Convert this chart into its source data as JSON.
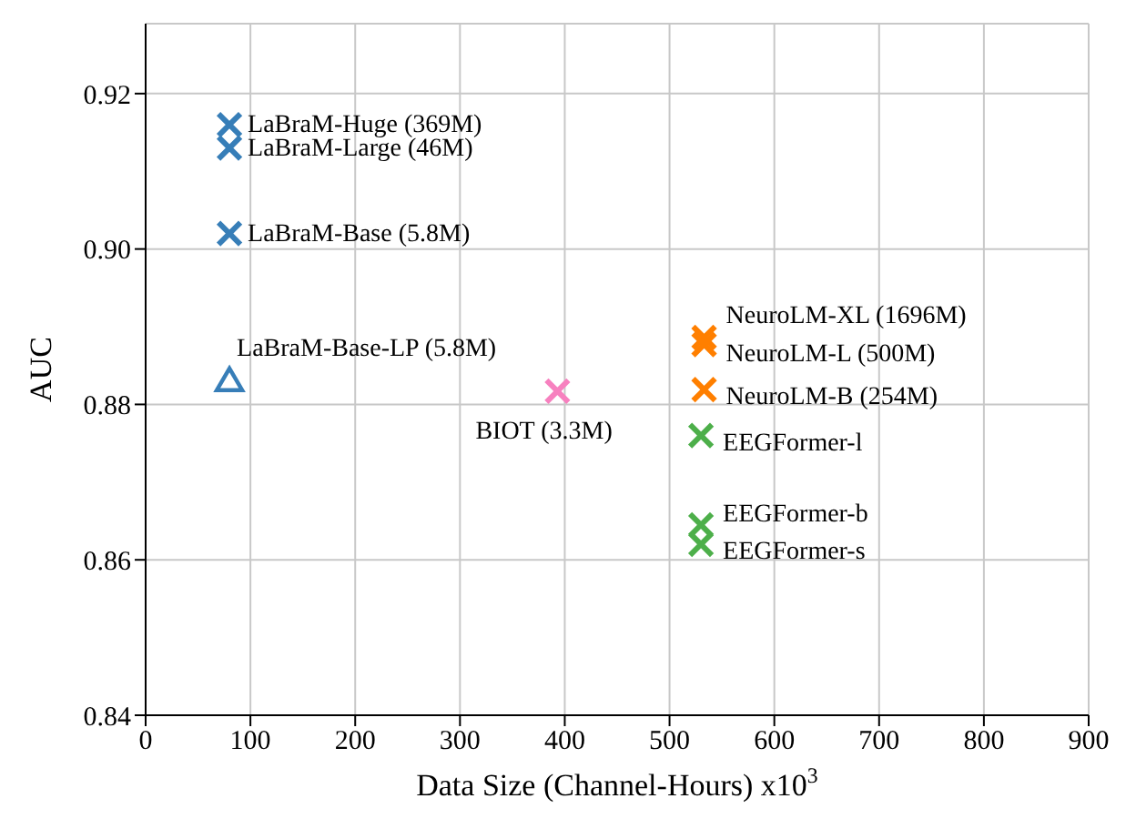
{
  "chart_data": {
    "type": "scatter",
    "xlabel": "Data Size (Channel-Hours) x10$^{3}$",
    "ylabel": "AUC",
    "xlim": [
      0,
      900
    ],
    "xticks": [
      0,
      100,
      200,
      300,
      400,
      500,
      600,
      700,
      800,
      900
    ],
    "ylim": [
      0.84,
      0.929
    ],
    "yticks": [
      0.84,
      0.86,
      0.88,
      {
        "value": 0.9,
        "label": "0.90"
      },
      0.92
    ],
    "grid": true,
    "legend": false,
    "series": [
      {
        "name": "LaBraM-Huge (369M)",
        "color": "#377eb8",
        "marker": "cross",
        "x": [
          80
        ],
        "values": [
          0.916
        ]
      },
      {
        "name": "LaBraM-Large (46M)",
        "color": "#377eb8",
        "marker": "cross",
        "x": [
          80
        ],
        "values": [
          0.913
        ]
      },
      {
        "name": "LaBraM-Base (5.8M)",
        "color": "#377eb8",
        "marker": "cross",
        "x": [
          80
        ],
        "values": [
          0.902
        ]
      },
      {
        "name": "LaBraM-Base-LP (5.8M)",
        "color": "#377eb8",
        "marker": "triangle",
        "x": [
          80
        ],
        "values": [
          0.883
        ]
      },
      {
        "name": "BIOT (3.3M)",
        "color": "#f781bf",
        "marker": "cross",
        "x": [
          393
        ],
        "values": [
          0.8817
        ]
      },
      {
        "name": "NeuroLM-XL (1696M)",
        "color": "#ff7f00",
        "marker": "cross",
        "x": [
          533
        ],
        "values": [
          0.8886
        ]
      },
      {
        "name": "NeuroLM-L (500M)",
        "color": "#ff7f00",
        "marker": "cross",
        "x": [
          533
        ],
        "values": [
          0.8877
        ]
      },
      {
        "name": "NeuroLM-B (254M)",
        "color": "#ff7f00",
        "marker": "cross",
        "x": [
          533
        ],
        "values": [
          0.8819
        ]
      },
      {
        "name": "EEGFormer-l",
        "color": "#4daf4a",
        "marker": "cross",
        "x": [
          530
        ],
        "values": [
          0.876
        ]
      },
      {
        "name": "EEGFormer-b",
        "color": "#4daf4a",
        "marker": "cross",
        "x": [
          530
        ],
        "values": [
          0.8645
        ]
      },
      {
        "name": "EEGFormer-s",
        "color": "#4daf4a",
        "marker": "cross",
        "x": [
          530
        ],
        "values": [
          0.862
        ]
      }
    ]
  }
}
